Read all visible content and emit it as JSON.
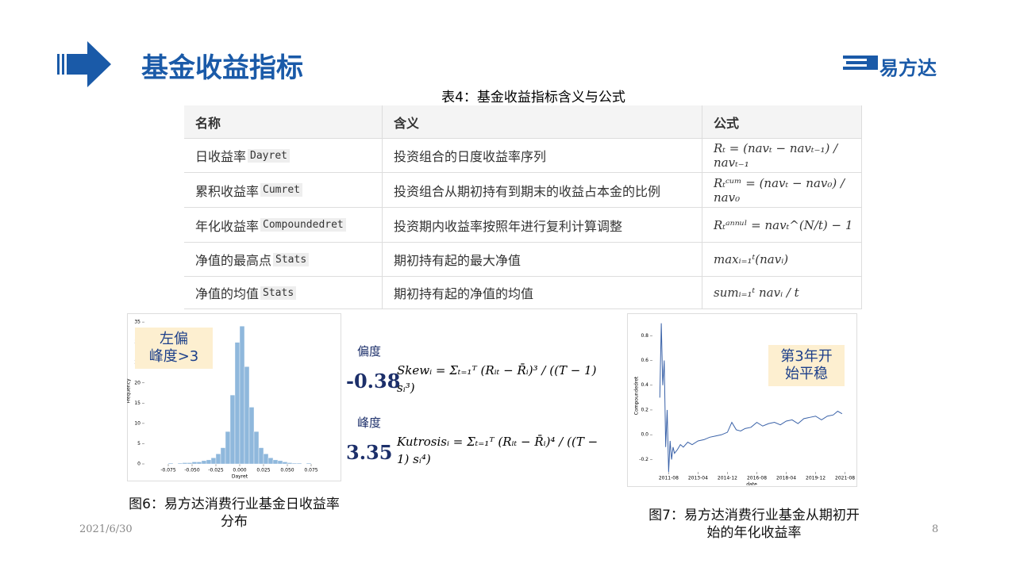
{
  "header": {
    "title": "基金收益指标",
    "logo": "易方达"
  },
  "table": {
    "caption": "表4：基金收益指标含义与公式",
    "columns": [
      "名称",
      "含义",
      "公式"
    ],
    "rows": [
      {
        "name": "日收益率",
        "code": "Dayret",
        "meaning": "投资组合的日度收益率序列",
        "formula": "Rₜ = (navₜ − navₜ₋₁) / navₜ₋₁"
      },
      {
        "name": "累积收益率",
        "code": "Cumret",
        "meaning": "投资组合从期初持有到期末的收益占本金的比例",
        "formula": "Rₜᶜᵘᵐ = (navₜ − nav₀) / nav₀"
      },
      {
        "name": "年化收益率",
        "code": "Compoundedret",
        "meaning": "投资期内收益率按照年进行复利计算调整",
        "formula": "Rₜᵃⁿⁿᵘˡ = navₜ^(N/t) − 1"
      },
      {
        "name": "净值的最高点",
        "code": "Stats",
        "meaning": "期初持有起的最大净值",
        "formula": "maxᵢ₌₁ᵗ(navᵢ)"
      },
      {
        "name": "净值的均值",
        "code": "Stats",
        "meaning": "期初持有起的净值的均值",
        "formula": "sumᵢ₌₁ᵗ navᵢ / t"
      }
    ]
  },
  "stats": [
    {
      "label": "偏度",
      "value": -0.38,
      "formula": "Skewᵢ = Σₜ₌₁ᵀ (Rᵢₜ − R̄ᵢ)³ / ((T − 1) sᵢ³)"
    },
    {
      "label": "峰度",
      "value": 3.35,
      "formula": "Kutrosisᵢ = Σₜ₌₁ᵀ (Rᵢₜ − R̄ᵢ)⁴ / ((T − 1) sᵢ⁴)"
    }
  ],
  "figure6": {
    "caption_lines": [
      "图6：易方达消费行业基金日收益率",
      "分布"
    ],
    "annotation_lines": [
      "左偏",
      "峰度>3"
    ],
    "chart_data": {
      "type": "histogram",
      "x_label": "Dayret",
      "y_label": "Frequency",
      "color": "#8fb8dc",
      "bins": [
        -0.075,
        -0.07,
        -0.065,
        -0.06,
        -0.055,
        -0.05,
        -0.045,
        -0.04,
        -0.035,
        -0.03,
        -0.025,
        -0.02,
        -0.015,
        -0.01,
        -0.005,
        0,
        0.005,
        0.01,
        0.015,
        0.02,
        0.025,
        0.03,
        0.035,
        0.04,
        0.045,
        0.05,
        0.055,
        0.06,
        0.065,
        0.07,
        0.075
      ],
      "counts": [
        0.2,
        0,
        0.2,
        0.3,
        0.3,
        0.5,
        0.5,
        0.8,
        1,
        1.5,
        2.5,
        4,
        8,
        17,
        30,
        34,
        24,
        14,
        8,
        4,
        2.5,
        1.5,
        1,
        0.8,
        0.5,
        0.3,
        0.2,
        0.2,
        0,
        0.2
      ],
      "xlim": [
        -0.1,
        0.1
      ],
      "xticks": [
        -0.075,
        {
          "value": -0.05,
          "label": "-0.050"
        },
        -0.025,
        {
          "value": 0,
          "label": "0.000"
        },
        0.025,
        {
          "value": 0.05,
          "label": "0.050"
        },
        0.075
      ],
      "ylim": [
        0,
        36
      ],
      "yticks": [
        0,
        5,
        10,
        15,
        20,
        25,
        30,
        35
      ]
    }
  },
  "figure7": {
    "caption_lines": [
      "图7：易方达消费行业基金从期初开",
      "始的年化收益率"
    ],
    "annotation_lines": [
      "第3年开",
      "始平稳"
    ],
    "chart_data": {
      "type": "line",
      "x_label": "date",
      "y_label": "Compoundedret",
      "color": "#3a62a8",
      "x": [
        "2011-02",
        "2011-03",
        "2011-04",
        "2011-05",
        "2011-06",
        "2011-07",
        "2011-08",
        "2011-09",
        "2011-10",
        "2011-11",
        "2011-12",
        "2012-02",
        "2012-04",
        "2012-06",
        "2012-09",
        "2012-12",
        "2013-04",
        "2013-08",
        "2013-12",
        "2014-04",
        "2014-08",
        "2014-12",
        "2015-03",
        "2015-06",
        "2015-09",
        "2015-12",
        "2016-04",
        "2016-08",
        "2016-12",
        "2017-04",
        "2017-08",
        "2017-12",
        "2018-04",
        "2018-08",
        "2018-12",
        "2019-04",
        "2019-08",
        "2019-12",
        "2020-04",
        "2020-08",
        "2020-12",
        "2021-03",
        "2021-06"
      ],
      "values": [
        0.3,
        0.9,
        0.4,
        0.6,
        -0.1,
        0.2,
        -0.3,
        -0.05,
        -0.2,
        -0.1,
        -0.15,
        -0.12,
        -0.08,
        -0.1,
        -0.06,
        -0.08,
        -0.05,
        -0.04,
        -0.02,
        -0.01,
        0.0,
        0.02,
        0.1,
        0.04,
        0.03,
        0.05,
        0.06,
        0.1,
        0.07,
        0.09,
        0.1,
        0.08,
        0.11,
        0.12,
        0.09,
        0.13,
        0.14,
        0.15,
        0.12,
        0.15,
        0.16,
        0.19,
        0.17
      ],
      "xlim": [
        "2010-09",
        "2021-12"
      ],
      "xticks": [
        "2011-08",
        "2013-04",
        "2014-12",
        "2016-08",
        "2018-04",
        "2019-12",
        "2021-08"
      ],
      "ylim": [
        -0.3,
        0.93
      ],
      "yticks": [
        -0.2,
        {
          "value": 0,
          "label": "0.0"
        },
        0.2,
        0.4,
        0.6,
        0.8
      ]
    }
  },
  "footer": {
    "date": "2021/6/30",
    "page": "8"
  }
}
